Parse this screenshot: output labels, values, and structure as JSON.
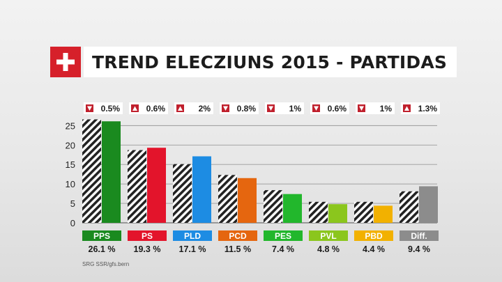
{
  "header": {
    "title": "TREND ELECZIUNS 2015 - PARTIDAS",
    "logo_icon": "swiss-cross-icon"
  },
  "source": "SRG SSR/gfs.bern",
  "colors": {
    "flag_red": "#d6202a",
    "change_marker": "#c0202d",
    "previous_bar_hatch": "#222222"
  },
  "chart_data": {
    "type": "bar",
    "title": "TREND ELECZIUNS 2015 - PARTIDAS",
    "categories": [
      "PPS",
      "PS",
      "PLD",
      "PCD",
      "PES",
      "PVL",
      "PBD",
      "Diff."
    ],
    "series": [
      {
        "values": [
          26.6,
          18.7,
          15.1,
          12.3,
          8.4,
          5.4,
          5.4,
          8.1
        ],
        "style": "hatched"
      },
      {
        "values": [
          26.1,
          19.3,
          17.1,
          11.5,
          7.4,
          4.8,
          4.4,
          9.4
        ]
      }
    ],
    "value_labels": [
      "26.1 %",
      "19.3 %",
      "17.1 %",
      "11.5 %",
      "7.4 %",
      "4.8 %",
      "4.4 %",
      "9.4 %"
    ],
    "changes": [
      {
        "label": "0.5%",
        "direction": "down"
      },
      {
        "label": "0.6%",
        "direction": "up"
      },
      {
        "label": "2%",
        "direction": "up"
      },
      {
        "label": "0.8%",
        "direction": "down"
      },
      {
        "label": "1%",
        "direction": "down"
      },
      {
        "label": "0.6%",
        "direction": "down"
      },
      {
        "label": "1%",
        "direction": "down"
      },
      {
        "label": "1.3%",
        "direction": "up"
      }
    ],
    "party_colors": [
      "#1a8a1f",
      "#e3142b",
      "#1d8ce3",
      "#e5660f",
      "#22b72c",
      "#8bc61d",
      "#f2b100",
      "#8c8c8c"
    ],
    "yticks": [
      0,
      5,
      10,
      15,
      20,
      25
    ],
    "ylim": [
      0,
      26.5
    ],
    "grid": true,
    "legend": "none"
  }
}
